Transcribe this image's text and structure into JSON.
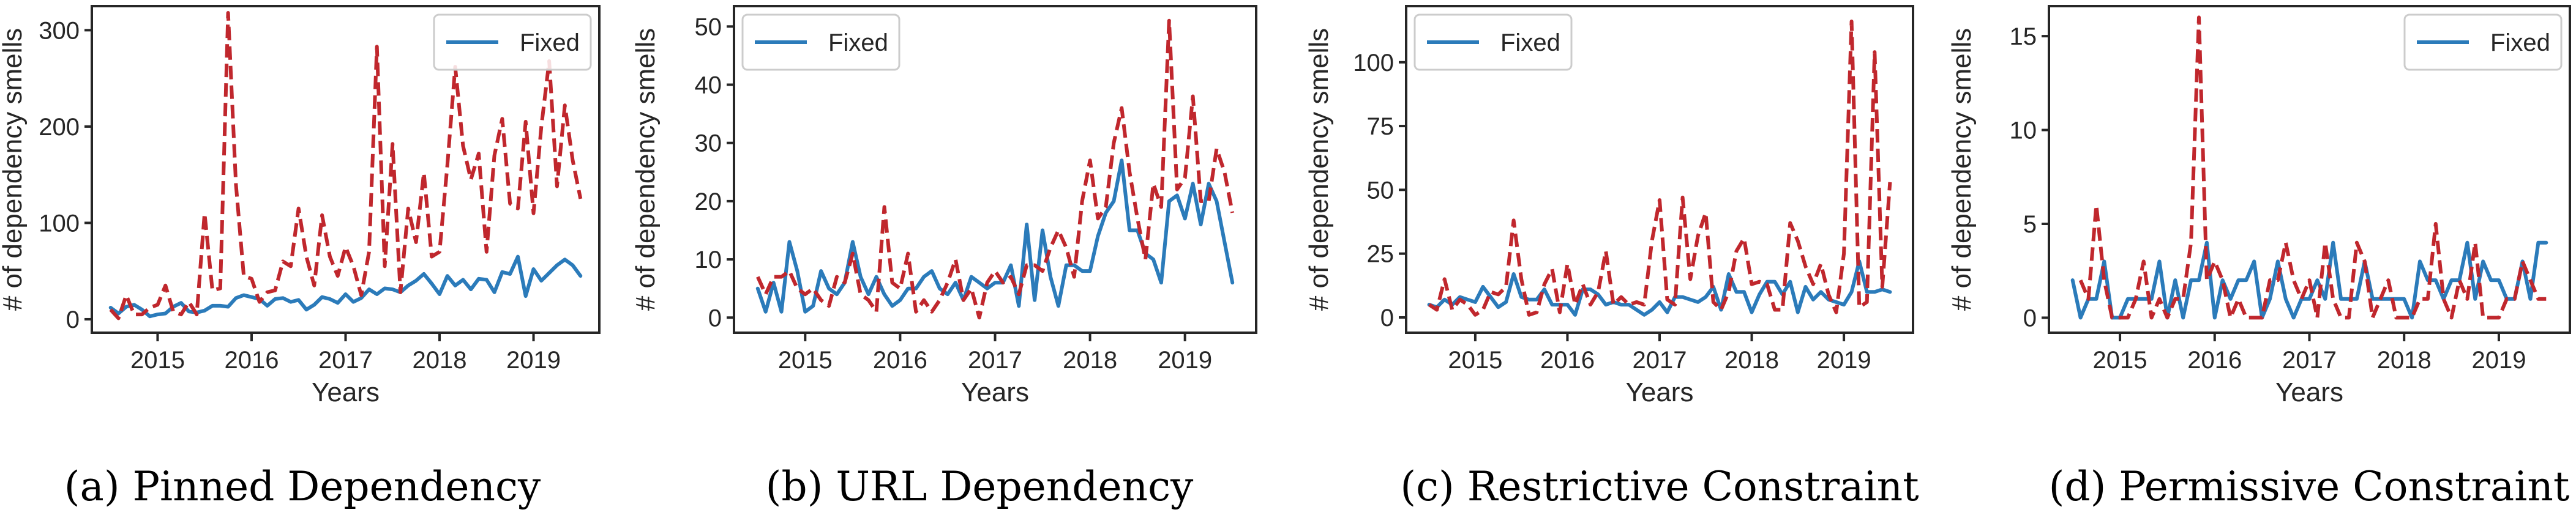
{
  "figure": {
    "series_styles": {
      "fixed": {
        "color": "#2b7bba",
        "dash": "solid"
      },
      "introduced": {
        "color": "#c0272d",
        "dash": "dashed"
      }
    }
  },
  "chart_data": [
    {
      "id": "a",
      "type": "line",
      "caption": "(a) Pinned Dependency",
      "title": "",
      "xlabel": "Years",
      "ylabel": "# of dependency smells",
      "x_start": "2014-07",
      "x_step": "month",
      "x_ticks": [
        2015,
        2016,
        2017,
        2018,
        2019
      ],
      "x_tick_labels": [
        "2015",
        "2016",
        "2017",
        "2018",
        "2019"
      ],
      "xlim": [
        2014.3,
        2019.7
      ],
      "y_ticks": [
        0,
        100,
        200,
        300
      ],
      "y_tick_labels": [
        "0",
        "100",
        "200",
        "300"
      ],
      "ylim": [
        -14,
        325
      ],
      "grid": false,
      "legend": {
        "position": "top-right",
        "entries": [
          "Fixed"
        ]
      },
      "series": [
        {
          "name": "Fixed",
          "style": "fixed",
          "values": [
            12,
            6,
            13,
            15,
            10,
            3,
            5,
            6,
            13,
            17,
            8,
            7,
            9,
            14,
            14,
            13,
            22,
            25,
            23,
            21,
            14,
            21,
            22,
            18,
            20,
            10,
            15,
            23,
            21,
            17,
            26,
            18,
            22,
            31,
            26,
            32,
            31,
            28,
            35,
            40,
            47,
            37,
            26,
            45,
            35,
            41,
            31,
            42,
            41,
            28,
            49,
            47,
            65,
            24,
            52,
            40,
            48,
            56,
            62,
            56,
            45
          ]
        },
        {
          "name": "",
          "style": "introduced",
          "values": [
            10,
            1,
            25,
            5,
            5,
            12,
            15,
            35,
            8,
            5,
            18,
            5,
            110,
            30,
            32,
            318,
            140,
            45,
            42,
            18,
            28,
            30,
            60,
            55,
            115,
            65,
            35,
            108,
            65,
            45,
            75,
            55,
            25,
            70,
            283,
            55,
            182,
            28,
            115,
            80,
            152,
            65,
            70,
            160,
            262,
            180,
            145,
            172,
            70,
            170,
            208,
            120,
            115,
            205,
            110,
            200,
            268,
            138,
            222,
            165,
            125
          ]
        }
      ]
    },
    {
      "id": "b",
      "type": "line",
      "caption": "(b) URL Dependency",
      "title": "",
      "xlabel": "Years",
      "ylabel": "# of dependency smells",
      "x_start": "2014-07",
      "x_step": "month",
      "x_ticks": [
        2015,
        2016,
        2017,
        2018,
        2019
      ],
      "x_tick_labels": [
        "2015",
        "2016",
        "2017",
        "2018",
        "2019"
      ],
      "xlim": [
        2014.25,
        2019.75
      ],
      "y_ticks": [
        0,
        10,
        20,
        30,
        40,
        50
      ],
      "y_tick_labels": [
        "0",
        "10",
        "20",
        "30",
        "40",
        "50"
      ],
      "ylim": [
        -2.6,
        53.5
      ],
      "grid": false,
      "legend": {
        "position": "top-left",
        "entries": [
          "Fixed"
        ]
      },
      "series": [
        {
          "name": "Fixed",
          "style": "fixed",
          "values": [
            5,
            1,
            6,
            1,
            13,
            8,
            1,
            2,
            8,
            5,
            4,
            6,
            13,
            7,
            4,
            7,
            4,
            2,
            3,
            5,
            5,
            7,
            8,
            5,
            4,
            6,
            3,
            7,
            6,
            5,
            6,
            6,
            9,
            2,
            16,
            3,
            15,
            7,
            2,
            9,
            9,
            8,
            8,
            14,
            18,
            20,
            27,
            15,
            15,
            11,
            10,
            6,
            20,
            21,
            17,
            23,
            16,
            23,
            20,
            13,
            6
          ]
        },
        {
          "name": "",
          "style": "introduced",
          "values": [
            7,
            4,
            7,
            7,
            8,
            5,
            4,
            5,
            3,
            2,
            7,
            6,
            11,
            4,
            3,
            1,
            19,
            6,
            5,
            11,
            1,
            3,
            1,
            3,
            6,
            10,
            3,
            5,
            0,
            6,
            8,
            6,
            7,
            4,
            9,
            9,
            8,
            12,
            15,
            12,
            7,
            20,
            27,
            17,
            19,
            30,
            36,
            25,
            17,
            10,
            23,
            19,
            51,
            22,
            24,
            38,
            20,
            20,
            29,
            25,
            18
          ]
        }
      ]
    },
    {
      "id": "c",
      "type": "line",
      "caption": "(c) Restrictive Constraint",
      "title": "",
      "xlabel": "Years",
      "ylabel": "# of dependency smells",
      "x_start": "2014-07",
      "x_step": "month",
      "x_ticks": [
        2015,
        2016,
        2017,
        2018,
        2019
      ],
      "x_tick_labels": [
        "2015",
        "2016",
        "2017",
        "2018",
        "2019"
      ],
      "xlim": [
        2014.25,
        2019.75
      ],
      "y_ticks": [
        0,
        25,
        50,
        75,
        100
      ],
      "y_tick_labels": [
        "0",
        "25",
        "50",
        "75",
        "100"
      ],
      "ylim": [
        -6,
        122
      ],
      "grid": false,
      "legend": {
        "position": "top-left",
        "entries": [
          "Fixed"
        ]
      },
      "series": [
        {
          "name": "Fixed",
          "style": "fixed",
          "values": [
            5,
            4,
            7,
            5,
            8,
            7,
            6,
            12,
            8,
            4,
            6,
            17,
            8,
            7,
            7,
            11,
            5,
            5,
            5,
            1,
            11,
            11,
            9,
            5,
            6,
            5,
            5,
            3,
            1,
            3,
            6,
            2,
            8,
            8,
            7,
            6,
            8,
            12,
            3,
            17,
            10,
            10,
            2,
            9,
            14,
            14,
            9,
            14,
            2,
            12,
            7,
            10,
            7,
            6,
            5,
            10,
            22,
            10,
            10,
            11,
            10
          ]
        },
        {
          "name": "",
          "style": "introduced",
          "values": [
            5,
            3,
            15,
            3,
            7,
            5,
            1,
            3,
            10,
            9,
            12,
            38,
            15,
            1,
            2,
            13,
            19,
            2,
            21,
            5,
            13,
            5,
            10,
            26,
            5,
            8,
            5,
            6,
            5,
            30,
            46,
            7,
            5,
            47,
            15,
            32,
            41,
            6,
            3,
            10,
            26,
            31,
            13,
            14,
            13,
            3,
            3,
            37,
            30,
            20,
            13,
            21,
            9,
            2,
            25,
            116,
            4,
            6,
            104,
            12,
            53
          ]
        }
      ]
    },
    {
      "id": "d",
      "type": "line",
      "caption": "(d) Permissive Constraint",
      "title": "",
      "xlabel": "Years",
      "ylabel": "# of dependency smells",
      "x_start": "2014-07",
      "x_step": "month",
      "x_ticks": [
        2015,
        2016,
        2017,
        2018,
        2019
      ],
      "x_tick_labels": [
        "2015",
        "2016",
        "2017",
        "2018",
        "2019"
      ],
      "xlim": [
        2014.25,
        2019.75
      ],
      "y_ticks": [
        0,
        5,
        10,
        15
      ],
      "y_tick_labels": [
        "0",
        "5",
        "10",
        "15"
      ],
      "ylim": [
        -0.8,
        16.6
      ],
      "grid": false,
      "legend": {
        "position": "top-right",
        "entries": [
          "Fixed"
        ]
      },
      "series": [
        {
          "name": "Fixed",
          "style": "fixed",
          "values": [
            2,
            0,
            1,
            1,
            3,
            0,
            0,
            1,
            1,
            1,
            1,
            3,
            0,
            2,
            0,
            2,
            2,
            4,
            0,
            2,
            1,
            2,
            2,
            3,
            0,
            1,
            3,
            1,
            0,
            1,
            1,
            2,
            1,
            4,
            1,
            1,
            1,
            3,
            1,
            1,
            1,
            1,
            1,
            0,
            3,
            2,
            2,
            1,
            2,
            2,
            4,
            1,
            3,
            2,
            2,
            1,
            1,
            3,
            1,
            4,
            4
          ]
        },
        {
          "name": "",
          "style": "introduced",
          "values": [
            null,
            2,
            1,
            6,
            2,
            0,
            0,
            0,
            1,
            3,
            0,
            1,
            0,
            1,
            1,
            4,
            16,
            2,
            3,
            2,
            0,
            1,
            0,
            0,
            0,
            2,
            2,
            4,
            2,
            1,
            2,
            0,
            4,
            1,
            0,
            0,
            4,
            3,
            0,
            1,
            2,
            0,
            0,
            0,
            1,
            1,
            5,
            1,
            0,
            2,
            1,
            4,
            0,
            0,
            0,
            1,
            1,
            3,
            2,
            1,
            1
          ]
        }
      ]
    }
  ]
}
